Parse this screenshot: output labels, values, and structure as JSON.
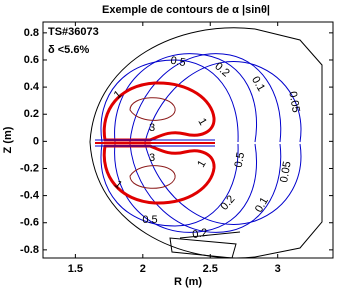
{
  "chart_data": {
    "type": "contour",
    "title": "Exemple de contours de α |sinθ|",
    "x_label": "R (m)",
    "y_label": "Z (m)",
    "annotations": [
      "TS#36073",
      "δ <5.6%"
    ],
    "levels": [
      3,
      1,
      0.5,
      0.2,
      0.1,
      0.05
    ],
    "level_colors": [
      "#8b1a1a",
      "#e00000",
      "#0000cc",
      "#0000cc",
      "#0000cc",
      "#0000cc"
    ],
    "xlim": [
      1.26,
      3.41
    ],
    "ylim": [
      -0.86,
      0.88
    ],
    "xticks": [
      1.5,
      2,
      2.5,
      3
    ],
    "yticks": [
      -0.8,
      -0.6,
      -0.4,
      -0.2,
      0,
      0.2,
      0.4,
      0.6,
      0.8
    ]
  }
}
